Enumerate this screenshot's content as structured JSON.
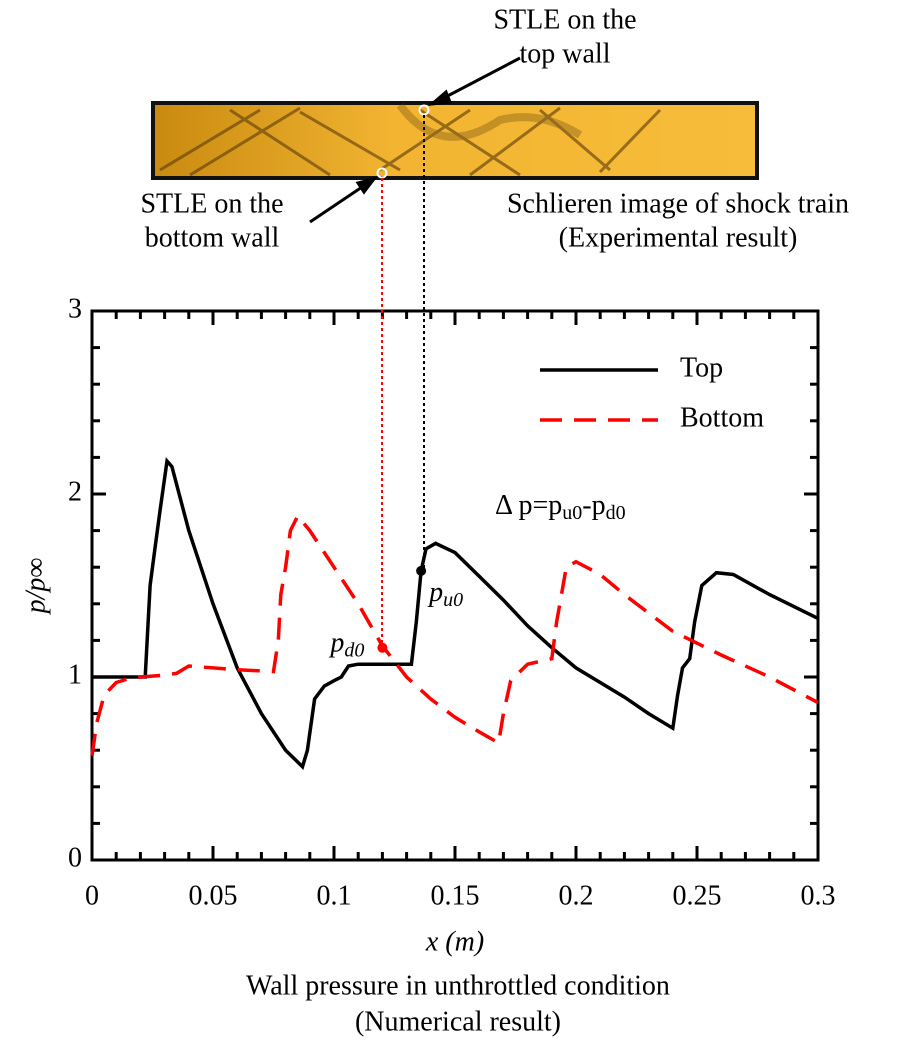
{
  "chart_data": {
    "type": "line",
    "title_lines": [
      "Wall pressure in unthrottled condition",
      "(Numerical result)"
    ],
    "x_label": "x (m)",
    "y_label": "p/p∞",
    "xlim": [
      0,
      0.3
    ],
    "ylim": [
      0,
      3
    ],
    "xticks": [
      0,
      0.05,
      0.1,
      0.15,
      0.2,
      0.25,
      0.3
    ],
    "yticks": [
      0,
      1,
      2,
      3
    ],
    "xminorticks": [
      0.01,
      0.02,
      0.03,
      0.04,
      0.06,
      0.07,
      0.08,
      0.09,
      0.11,
      0.12,
      0.13,
      0.14,
      0.16,
      0.17,
      0.18,
      0.19,
      0.21,
      0.22,
      0.23,
      0.24,
      0.26,
      0.27,
      0.28,
      0.29
    ],
    "yminorticks": [
      0.2,
      0.4,
      0.6,
      0.8,
      1.2,
      1.4,
      1.6,
      1.8,
      2.2,
      2.4,
      2.6,
      2.8
    ],
    "legend": "upper right",
    "series": [
      {
        "name": "Top",
        "color": "#000000",
        "dash": "solid",
        "x": [
          0,
          0.022,
          0.024,
          0.026,
          0.028,
          0.031,
          0.033,
          0.04,
          0.05,
          0.06,
          0.07,
          0.08,
          0.087,
          0.089,
          0.092,
          0.096,
          0.1,
          0.103,
          0.106,
          0.11,
          0.12,
          0.132,
          0.134,
          0.136,
          0.138,
          0.142,
          0.15,
          0.16,
          0.17,
          0.18,
          0.19,
          0.2,
          0.21,
          0.22,
          0.23,
          0.24,
          0.242,
          0.244,
          0.247,
          0.249,
          0.252,
          0.258,
          0.265,
          0.28,
          0.3
        ],
        "values": [
          1.0,
          1.0,
          1.5,
          1.7,
          1.9,
          2.18,
          2.15,
          1.8,
          1.4,
          1.05,
          0.8,
          0.6,
          0.51,
          0.6,
          0.88,
          0.95,
          0.98,
          1.0,
          1.06,
          1.07,
          1.07,
          1.07,
          1.3,
          1.58,
          1.7,
          1.73,
          1.68,
          1.55,
          1.42,
          1.28,
          1.16,
          1.05,
          0.97,
          0.89,
          0.8,
          0.72,
          0.9,
          1.05,
          1.1,
          1.3,
          1.5,
          1.57,
          1.56,
          1.45,
          1.32
        ]
      },
      {
        "name": "Bottom",
        "color": "#ff0000",
        "dash": "dashed",
        "x": [
          0,
          0.002,
          0.005,
          0.01,
          0.015,
          0.02,
          0.03,
          0.035,
          0.04,
          0.05,
          0.06,
          0.075,
          0.077,
          0.078,
          0.08,
          0.082,
          0.085,
          0.09,
          0.1,
          0.11,
          0.12,
          0.13,
          0.14,
          0.15,
          0.16,
          0.168,
          0.17,
          0.173,
          0.18,
          0.19,
          0.192,
          0.196,
          0.2,
          0.21,
          0.22,
          0.24,
          0.26,
          0.28,
          0.3
        ],
        "values": [
          0.57,
          0.75,
          0.9,
          0.97,
          0.99,
          1.0,
          1.01,
          1.02,
          1.06,
          1.05,
          1.04,
          1.03,
          1.2,
          1.45,
          1.6,
          1.8,
          1.88,
          1.8,
          1.6,
          1.4,
          1.17,
          1.0,
          0.88,
          0.78,
          0.7,
          0.64,
          0.8,
          0.98,
          1.07,
          1.1,
          1.3,
          1.6,
          1.63,
          1.56,
          1.45,
          1.25,
          1.12,
          1.0,
          0.86
        ]
      }
    ],
    "points": [
      {
        "x": 0.12,
        "y": 1.16,
        "color": "#ff0000",
        "label": [
          "p",
          "d0"
        ]
      },
      {
        "x": 0.136,
        "y": 1.58,
        "color": "#000000",
        "label": [
          "p",
          "u0"
        ]
      }
    ],
    "delta_label": [
      "Δ p=p",
      "u0",
      "-p",
      "d0"
    ]
  },
  "image": {
    "caption_lines": [
      "Schlieren image of shock train",
      "(Experimental result)"
    ],
    "top_note": [
      "STLE on the",
      "top wall"
    ],
    "bottom_note": [
      "STLE on the",
      "bottom wall"
    ]
  }
}
